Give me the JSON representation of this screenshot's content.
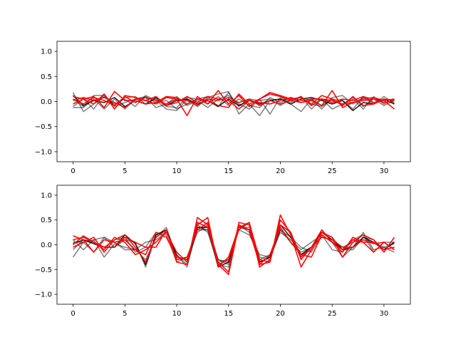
{
  "chart_data": [
    {
      "type": "line",
      "title": "",
      "xlabel": "",
      "ylabel": "",
      "xlim": [
        -1.55,
        32.55
      ],
      "ylim": [
        -1.2,
        1.2
      ],
      "xticks": [
        0,
        5,
        10,
        15,
        20,
        25,
        30
      ],
      "yticks": [
        -1.0,
        -0.5,
        0.0,
        0.5,
        1.0
      ],
      "ytick_labels": [
        "−1.0",
        "−0.5",
        "0.0",
        "0.5",
        "1.0"
      ],
      "grid": false,
      "x": [
        0,
        1,
        2,
        3,
        4,
        5,
        6,
        7,
        8,
        9,
        10,
        11,
        12,
        13,
        14,
        15,
        16,
        17,
        18,
        19,
        20,
        21,
        22,
        23,
        24,
        25,
        26,
        27,
        28,
        29,
        30,
        31
      ],
      "series": [
        {
          "color": "#000000",
          "alpha": 0.5,
          "values": [
            0.18,
            -0.2,
            -0.05,
            0.1,
            -0.05,
            0.05,
            -0.1,
            0.12,
            0.02,
            -0.15,
            -0.18,
            0.05,
            -0.1,
            0.08,
            0.15,
            0.2,
            -0.25,
            -0.05,
            -0.28,
            0.02,
            0.05,
            -0.05,
            -0.2,
            0.05,
            -0.15,
            0.08,
            0.12,
            -0.05,
            0.08,
            -0.05,
            0.1,
            -0.03
          ]
        },
        {
          "color": "#000000",
          "alpha": 0.5,
          "values": [
            -0.1,
            0.05,
            -0.15,
            0.15,
            -0.1,
            -0.02,
            0.05,
            0.08,
            -0.12,
            -0.05,
            0.1,
            -0.08,
            0.02,
            -0.12,
            0.05,
            0.12,
            -0.05,
            -0.15,
            0.05,
            -0.25,
            0.08,
            -0.02,
            0.1,
            -0.15,
            0.05,
            -0.15,
            -0.05,
            0.08,
            -0.1,
            0.05,
            0.02,
            0.05
          ]
        },
        {
          "color": "#000000",
          "alpha": 0.5,
          "values": [
            0.05,
            -0.1,
            0.12,
            0.12,
            -0.08,
            0.08,
            0.1,
            -0.05,
            0.05,
            -0.1,
            -0.12,
            0.08,
            0.05,
            0.1,
            -0.1,
            0.18,
            -0.1,
            0.05,
            0.02,
            0.05,
            -0.08,
            0.05,
            0.08,
            -0.05,
            -0.1,
            0.05,
            -0.08,
            0.05,
            -0.15,
            0.1,
            -0.05,
            0.05
          ]
        },
        {
          "color": "#000000",
          "alpha": 0.5,
          "values": [
            -0.12,
            -0.12,
            0.05,
            -0.15,
            0.05,
            -0.15,
            0.05,
            0.1,
            -0.02,
            0.02,
            -0.15,
            -0.05,
            0.05,
            -0.05,
            0.1,
            -0.08,
            0.05,
            -0.08,
            -0.12,
            0.08,
            -0.02,
            0.08,
            -0.02,
            0.05,
            -0.08,
            0.05,
            0.02,
            -0.15,
            0.1,
            0.05,
            -0.08,
            0.02
          ]
        },
        {
          "color": "#000000",
          "alpha": 0.9,
          "values": [
            0.12,
            -0.08,
            0.02,
            -0.02,
            0.08,
            -0.1,
            0.02,
            -0.05,
            0.08,
            -0.08,
            0.02,
            0.05,
            -0.05,
            0.02,
            -0.1,
            0.05,
            -0.08,
            0.02,
            -0.05,
            0.02,
            0.05,
            -0.05,
            0.05,
            0.08,
            0.02,
            -0.05,
            0.02,
            -0.18,
            -0.02,
            -0.05,
            0.05,
            -0.05
          ]
        },
        {
          "color": "#ff0000",
          "alpha": 1.0,
          "values": [
            0.1,
            0.05,
            -0.05,
            0.15,
            -0.15,
            0.12,
            0.08,
            0.02,
            -0.05,
            0.08,
            0.05,
            -0.28,
            0.1,
            -0.05,
            0.22,
            -0.05,
            0.12,
            -0.1,
            0.05,
            0.15,
            0.1,
            0.02,
            -0.02,
            0.02,
            -0.08,
            0.22,
            -0.12,
            -0.02,
            0.05,
            0.08,
            0.02,
            -0.15
          ]
        },
        {
          "color": "#ff0000",
          "alpha": 1.0,
          "values": [
            -0.05,
            0.05,
            0.1,
            -0.12,
            0.2,
            0.02,
            0.02,
            -0.05,
            -0.02,
            0.1,
            0.08,
            -0.05,
            0.05,
            0.02,
            -0.08,
            -0.12,
            0.15,
            -0.05,
            0.05,
            0.18,
            0.12,
            0.05,
            0.08,
            -0.05,
            0.12,
            0.05,
            -0.08,
            0.1,
            -0.08,
            -0.05,
            0.05,
            0.02
          ]
        },
        {
          "color": "#ff0000",
          "alpha": 1.0,
          "values": [
            0.02,
            0.08,
            0.02,
            0.08,
            -0.02,
            -0.12,
            0.05,
            0.02,
            0.1,
            -0.08,
            -0.02,
            0.1,
            -0.02,
            0.1,
            0.05,
            0.02,
            -0.15,
            0.02,
            -0.02,
            -0.05,
            0.02,
            0.08,
            0.02,
            0.05,
            0.05,
            -0.02,
            0.05,
            0.02,
            0.1,
            -0.02,
            0.02,
            0.05
          ]
        },
        {
          "color": "#ff0000",
          "alpha": 1.0,
          "values": [
            0.05,
            -0.05,
            0.08,
            0.02,
            -0.08,
            0.1,
            -0.02,
            0.08,
            0.02,
            -0.05,
            0.05,
            0.02,
            -0.08,
            0.05,
            0.02,
            0.08,
            -0.02,
            0.05,
            -0.08,
            0.02,
            -0.05,
            0.02,
            0.1,
            -0.08,
            0.05,
            0.02,
            -0.05,
            -0.02,
            0.02,
            0.05,
            -0.02,
            0.02
          ]
        }
      ]
    },
    {
      "type": "line",
      "title": "",
      "xlabel": "",
      "ylabel": "",
      "xlim": [
        -1.55,
        32.55
      ],
      "ylim": [
        -1.2,
        1.2
      ],
      "xticks": [
        0,
        5,
        10,
        15,
        20,
        25,
        30
      ],
      "yticks": [
        -1.0,
        -0.5,
        0.0,
        0.5,
        1.0
      ],
      "ytick_labels": [
        "−1.0",
        "−0.5",
        "0.0",
        "0.5",
        "1.0"
      ],
      "grid": false,
      "x": [
        0,
        1,
        2,
        3,
        4,
        5,
        6,
        7,
        8,
        9,
        10,
        11,
        12,
        13,
        14,
        15,
        16,
        17,
        18,
        19,
        20,
        21,
        22,
        23,
        24,
        25,
        26,
        27,
        28,
        29,
        30,
        31
      ],
      "series": [
        {
          "color": "#000000",
          "alpha": 0.5,
          "values": [
            -0.25,
            0.05,
            -0.15,
            0.15,
            -0.05,
            0.1,
            0.05,
            -0.45,
            0.2,
            0.3,
            -0.2,
            -0.45,
            0.4,
            0.25,
            -0.4,
            -0.45,
            0.35,
            0.3,
            -0.35,
            -0.25,
            0.35,
            0.05,
            -0.2,
            -0.1,
            0.3,
            0.05,
            -0.25,
            -0.05,
            0.25,
            -0.1,
            -0.05,
            -0.15
          ]
        },
        {
          "color": "#000000",
          "alpha": 0.5,
          "values": [
            0.1,
            -0.1,
            0.1,
            -0.25,
            0.02,
            -0.05,
            -0.1,
            0.05,
            0.1,
            0.25,
            -0.2,
            -0.4,
            0.3,
            0.3,
            -0.35,
            -0.3,
            0.3,
            0.2,
            -0.2,
            -0.25,
            0.25,
            0.1,
            -0.1,
            0.05,
            0.2,
            -0.1,
            -0.15,
            0.1,
            0.2,
            -0.15,
            0.05,
            0.05
          ]
        },
        {
          "color": "#000000",
          "alpha": 0.5,
          "values": [
            -0.1,
            0.1,
            0.05,
            -0.05,
            0.1,
            0.15,
            -0.15,
            -0.05,
            0.25,
            0.2,
            -0.35,
            -0.25,
            0.25,
            0.4,
            -0.3,
            -0.4,
            0.4,
            0.25,
            -0.3,
            -0.2,
            0.3,
            0.05,
            -0.15,
            -0.05,
            0.25,
            0.15,
            -0.1,
            -0.1,
            0.15,
            0.1,
            -0.1,
            0.05
          ]
        },
        {
          "color": "#000000",
          "alpha": 0.5,
          "values": [
            0.05,
            0.05,
            0.1,
            0.15,
            0.05,
            -0.1,
            -0.1,
            -0.3,
            0.15,
            0.35,
            -0.25,
            -0.3,
            0.35,
            0.3,
            -0.3,
            -0.35,
            0.35,
            0.35,
            -0.25,
            -0.3,
            0.3,
            0.15,
            -0.05,
            -0.15,
            0.2,
            0.05,
            -0.05,
            0.05,
            0.1,
            0.05,
            -0.05,
            0.02
          ]
        },
        {
          "color": "#000000",
          "alpha": 0.9,
          "values": [
            0.02,
            0.1,
            0.02,
            -0.05,
            -0.05,
            0.2,
            0.02,
            -0.4,
            0.2,
            0.3,
            -0.25,
            -0.3,
            0.35,
            0.35,
            -0.45,
            -0.35,
            0.4,
            0.3,
            -0.35,
            -0.25,
            0.4,
            0.15,
            -0.2,
            -0.05,
            0.25,
            0.1,
            -0.1,
            -0.05,
            0.15,
            0.05,
            -0.1,
            0.05
          ]
        },
        {
          "color": "#ff0000",
          "alpha": 1.0,
          "values": [
            -0.05,
            0.05,
            0.15,
            -0.15,
            0.1,
            0.2,
            -0.05,
            -0.35,
            0.15,
            0.3,
            -0.35,
            -0.4,
            0.55,
            0.4,
            -0.35,
            -0.55,
            0.45,
            0.4,
            -0.4,
            -0.35,
            0.6,
            0.2,
            -0.45,
            -0.1,
            0.25,
            0.15,
            -0.25,
            0.05,
            0.2,
            0.1,
            -0.15,
            0.15
          ]
        },
        {
          "color": "#ff0000",
          "alpha": 1.0,
          "values": [
            0.18,
            0.1,
            -0.15,
            0.1,
            0.05,
            0.1,
            -0.1,
            -0.2,
            0.25,
            0.15,
            -0.25,
            -0.3,
            0.4,
            0.55,
            -0.45,
            -0.25,
            0.35,
            0.45,
            -0.3,
            -0.35,
            0.5,
            0.25,
            -0.25,
            -0.05,
            0.3,
            0.05,
            -0.1,
            0.1,
            0.05,
            -0.15,
            0.05,
            -0.1
          ]
        },
        {
          "color": "#ff0000",
          "alpha": 1.0,
          "values": [
            0.1,
            0.15,
            0.05,
            -0.1,
            0.15,
            0.05,
            -0.2,
            -0.1,
            0.05,
            0.25,
            -0.15,
            -0.35,
            0.45,
            0.35,
            -0.4,
            -0.6,
            0.4,
            0.3,
            -0.4,
            -0.2,
            0.35,
            0.05,
            -0.2,
            -0.25,
            0.2,
            0.05,
            -0.15,
            0.15,
            0.05,
            0.05,
            -0.1,
            -0.05
          ]
        },
        {
          "color": "#ff0000",
          "alpha": 1.0,
          "values": [
            0.0,
            0.18,
            0.05,
            -0.05,
            -0.05,
            0.15,
            0.05,
            -0.05,
            -0.05,
            0.3,
            -0.3,
            -0.25,
            0.3,
            0.45,
            -0.4,
            -0.3,
            0.3,
            0.45,
            -0.45,
            -0.3,
            0.4,
            0.25,
            -0.3,
            -0.05,
            0.15,
            0.1,
            -0.05,
            -0.05,
            0.1,
            0.02,
            0.05,
            -0.1
          ]
        }
      ]
    }
  ]
}
